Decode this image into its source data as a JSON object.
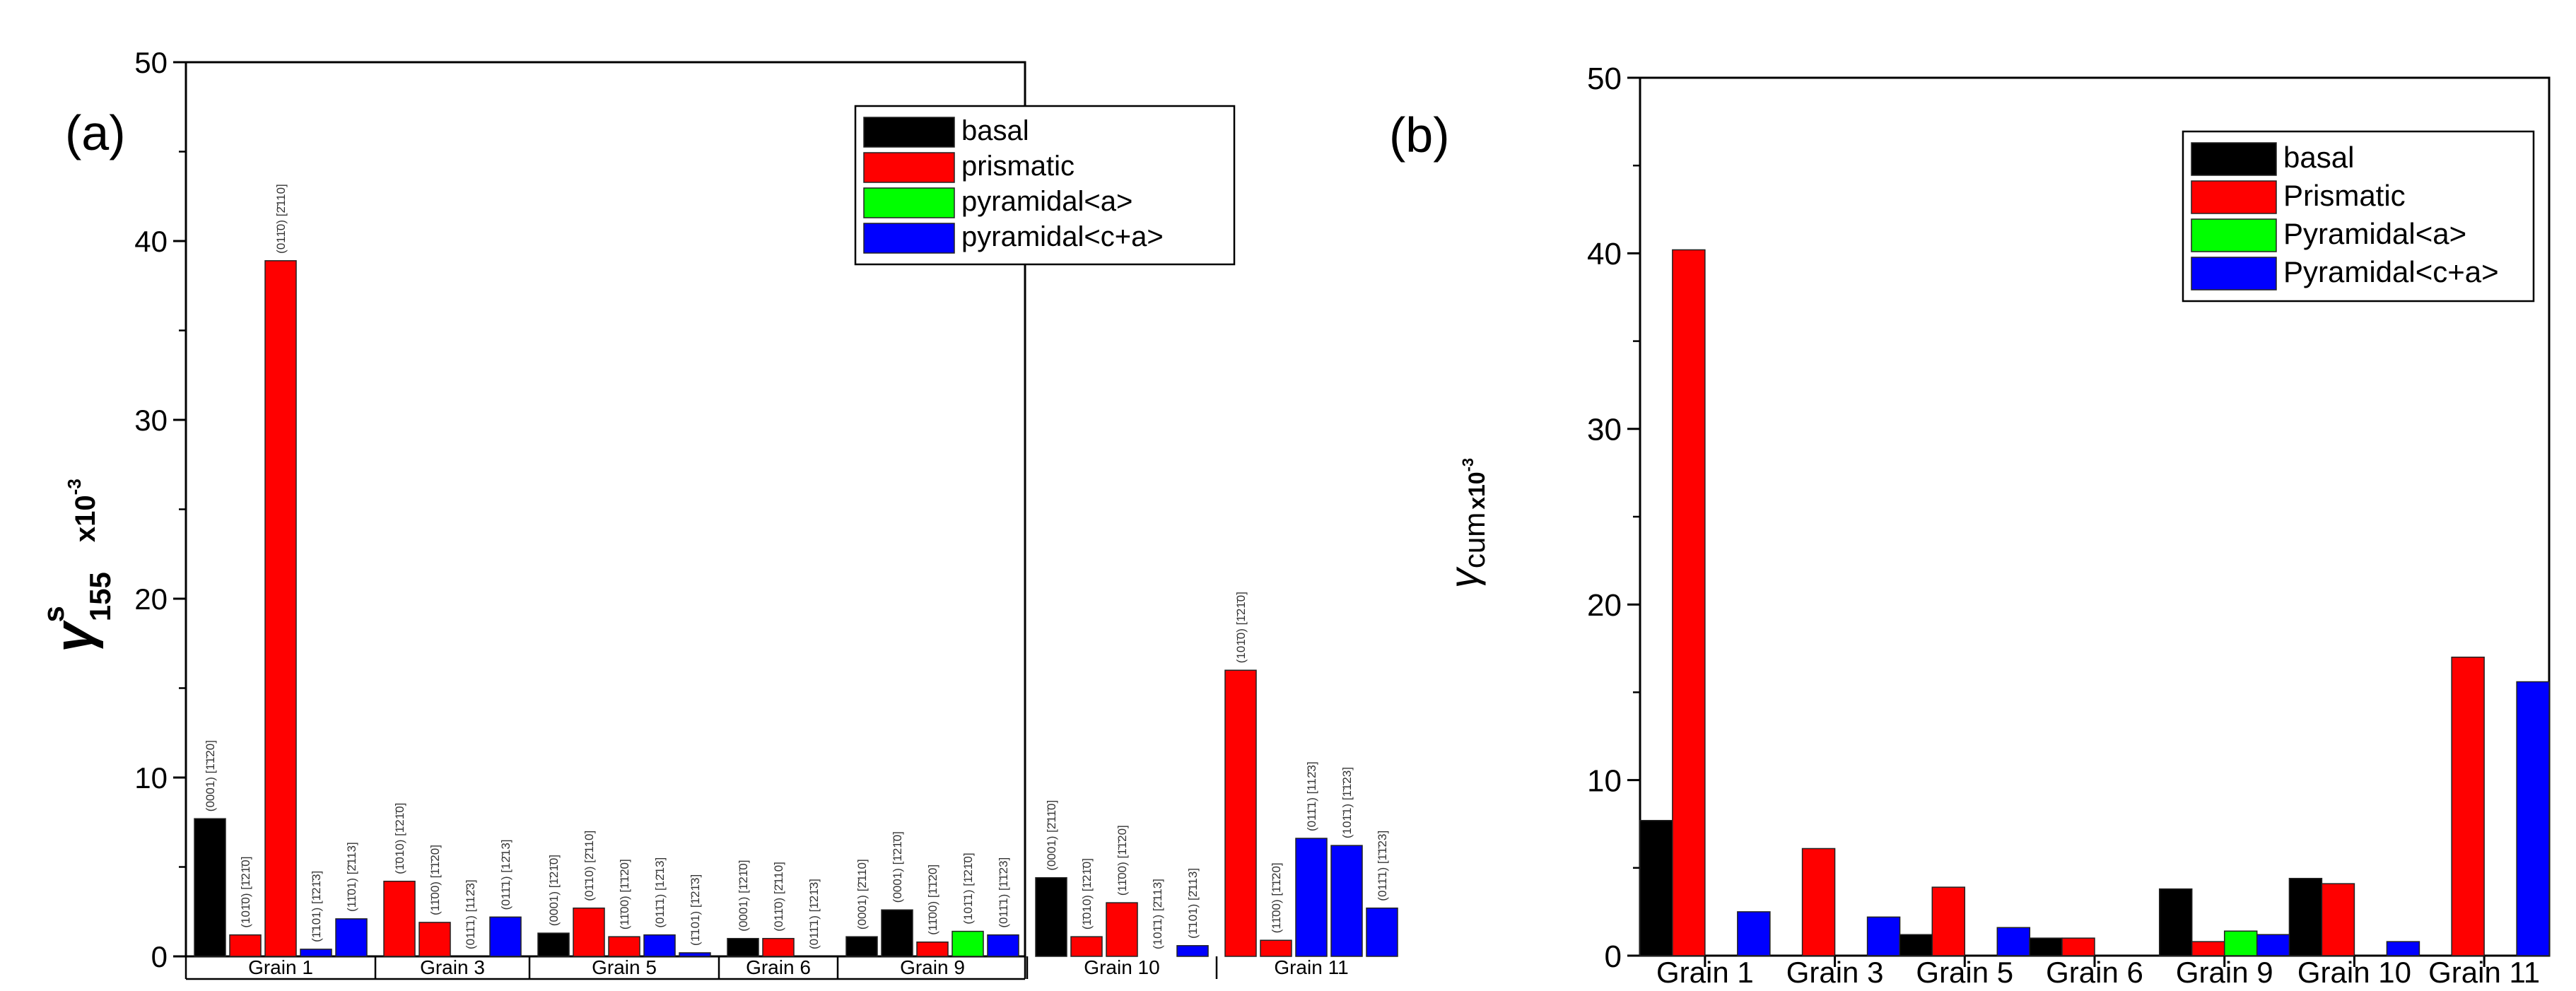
{
  "chart_data": [
    {
      "type": "bar",
      "panel_label": "(a)",
      "ylabel_symbol": "γ",
      "ylabel_sup": "s",
      "ylabel_sub": "155",
      "ylabel_multiplier": "x10",
      "ylabel_multiplier_exp": "-3",
      "ylim": [
        0,
        50
      ],
      "yticks": [
        0,
        10,
        20,
        30,
        40,
        50
      ],
      "legend_position": "top-right",
      "series": [
        {
          "name": "basal",
          "color": "#000000"
        },
        {
          "name": "prismatic",
          "color": "#ff0000"
        },
        {
          "name": "pyramidal<a>",
          "color": "#00ff00"
        },
        {
          "name": "pyramidal<c+a>",
          "color": "#0000ff"
        }
      ],
      "groups": [
        {
          "name": "Grain 1",
          "bars": [
            {
              "value": 7.7,
              "series": "basal",
              "label": "(0001) [1̄1̄20]"
            },
            {
              "value": 1.2,
              "series": "prismatic",
              "label": "(101̄0) [1̄21̄0]"
            },
            {
              "value": 38.9,
              "series": "prismatic",
              "label": "(011̄0) [2̄110]"
            },
            {
              "value": 0.4,
              "series": "pyramidal<c+a>",
              "label": "(1̄101) [1̄21̄3]"
            },
            {
              "value": 2.1,
              "series": "pyramidal<c+a>",
              "label": "(11̄01) [2̄113]"
            }
          ]
        },
        {
          "name": "Grain 3",
          "bars": [
            {
              "value": 4.2,
              "series": "prismatic",
              "label": "(1̄010) [1̄21̄0]"
            },
            {
              "value": 1.9,
              "series": "prismatic",
              "label": "(11̄00) [1̄1̄20]"
            },
            {
              "value": 0.0,
              "series": "pyramidal<c+a>",
              "label": "(011̄1) [112̄3]"
            },
            {
              "value": 2.2,
              "series": "pyramidal<c+a>",
              "label": "(011̄1) [12̄13]"
            }
          ]
        },
        {
          "name": "Grain 5",
          "bars": [
            {
              "value": 1.3,
              "series": "basal",
              "label": "(0001) [1̄21̄0]"
            },
            {
              "value": 2.7,
              "series": "prismatic",
              "label": "(01̄10) [2̄110]"
            },
            {
              "value": 1.1,
              "series": "prismatic",
              "label": "(11̄00) [1̄1̄20]"
            },
            {
              "value": 1.2,
              "series": "pyramidal<c+a>",
              "label": "(011̄1) [12̄13]"
            },
            {
              "value": 0.2,
              "series": "pyramidal<c+a>",
              "label": "(1̄101) [1̄21̄3]"
            }
          ]
        },
        {
          "name": "Grain 6",
          "bars": [
            {
              "value": 1.0,
              "series": "basal",
              "label": "(0001) [1̄21̄0]"
            },
            {
              "value": 1.0,
              "series": "prismatic",
              "label": "(011̄0) [2̄110]"
            },
            {
              "value": 0.0,
              "series": "pyramidal<c+a>",
              "label": "(011̄1) [1̄21̄3]"
            }
          ]
        },
        {
          "name": "Grain 9",
          "bars": [
            {
              "value": 1.1,
              "series": "basal",
              "label": "(0001) [2̄110]"
            },
            {
              "value": 2.6,
              "series": "basal",
              "label": "(0001) [1̄21̄0]"
            },
            {
              "value": 0.8,
              "series": "prismatic",
              "label": "(11̄00) [1̄1̄20]"
            },
            {
              "value": 1.4,
              "series": "pyramidal<a>",
              "label": "(101̄1) [1̄21̄0]"
            },
            {
              "value": 1.2,
              "series": "pyramidal<c+a>",
              "label": "(011̄1) [1̄1̄23]"
            }
          ]
        },
        {
          "name": "Grain 10",
          "bars": [
            {
              "value": 4.4,
              "series": "basal",
              "label": "(0001) [2̄11̄0]"
            },
            {
              "value": 1.1,
              "series": "prismatic",
              "label": "(1̄010) [1̄21̄0]"
            },
            {
              "value": 3.0,
              "series": "prismatic",
              "label": "(11̄00) [1̄1̄20]"
            },
            {
              "value": 0.0,
              "series": "pyramidal<c+a>",
              "label": "(101̄1) [2̄113]"
            },
            {
              "value": 0.6,
              "series": "pyramidal<c+a>",
              "label": "(1̄101) [2̄113]"
            }
          ]
        },
        {
          "name": "Grain 11",
          "bars": [
            {
              "value": 16.0,
              "series": "prismatic",
              "label": "(101̄0) [1̄21̄0]"
            },
            {
              "value": 0.9,
              "series": "prismatic",
              "label": "(11̄00) [1̄1̄20]"
            },
            {
              "value": 6.6,
              "series": "pyramidal<c+a>",
              "label": "(011̄1) [112̄3]"
            },
            {
              "value": 6.2,
              "series": "pyramidal<c+a>",
              "label": "(101̄1) [1̄1̄23]"
            },
            {
              "value": 2.7,
              "series": "pyramidal<c+a>",
              "label": "(011̄1) [1̄1̄23]"
            }
          ]
        }
      ]
    },
    {
      "type": "bar",
      "panel_label": "(b)",
      "ylabel_symbol": "γ",
      "ylabel_sub": "cum",
      "ylabel_multiplier": "x10",
      "ylabel_multiplier_exp": "-3",
      "ylim": [
        0,
        50
      ],
      "yticks": [
        0,
        10,
        20,
        30,
        40,
        50
      ],
      "legend_position": "top-right",
      "categories": [
        "Grain 1",
        "Grain 3",
        "Grain 5",
        "Grain 6",
        "Grain 9",
        "Grain 10",
        "Grain 11"
      ],
      "series": [
        {
          "name": "basal",
          "color": "#000000",
          "values": [
            7.7,
            0,
            1.2,
            1.0,
            3.8,
            4.4,
            0
          ]
        },
        {
          "name": "Prismatic",
          "color": "#ff0000",
          "values": [
            40.2,
            6.1,
            3.9,
            1.0,
            0.8,
            4.1,
            17.0
          ]
        },
        {
          "name": "Pyramidal<a>",
          "color": "#00ff00",
          "values": [
            0,
            0,
            0,
            0,
            1.4,
            0,
            0
          ]
        },
        {
          "name": "Pyramidal<c+a>",
          "color": "#0000ff",
          "values": [
            2.5,
            2.2,
            1.6,
            0,
            1.2,
            0.8,
            15.6
          ]
        }
      ]
    }
  ]
}
